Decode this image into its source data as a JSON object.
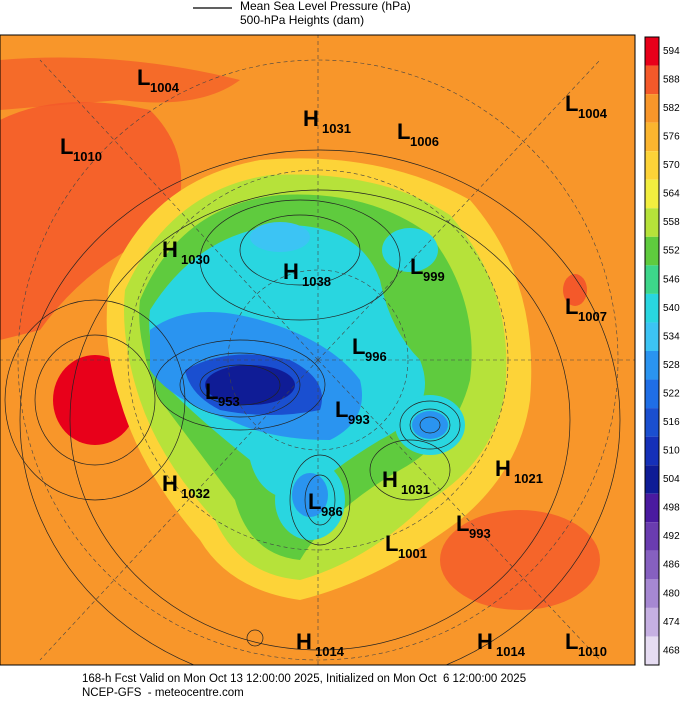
{
  "legend": {
    "line_label": "Mean Sea Level Pressure (hPa)",
    "fill_label": "500-hPa Heights (dam)"
  },
  "colorbar": {
    "levels": [
      {
        "value": 594,
        "color": "#e8001a"
      },
      {
        "value": 588,
        "color": "#f4592a"
      },
      {
        "value": 582,
        "color": "#f8962a"
      },
      {
        "value": 576,
        "color": "#fbb52f"
      },
      {
        "value": 570,
        "color": "#fdd338"
      },
      {
        "value": 564,
        "color": "#f2ee3f"
      },
      {
        "value": 558,
        "color": "#b6e23a"
      },
      {
        "value": 552,
        "color": "#5fcb3e"
      },
      {
        "value": 546,
        "color": "#3dd68a"
      },
      {
        "value": 540,
        "color": "#29d6e0"
      },
      {
        "value": 534,
        "color": "#3cc4f4"
      },
      {
        "value": 528,
        "color": "#2a94f0"
      },
      {
        "value": 522,
        "color": "#1f6ee6"
      },
      {
        "value": 516,
        "color": "#1a4fd0"
      },
      {
        "value": 510,
        "color": "#1530b8"
      },
      {
        "value": 504,
        "color": "#0f1c96"
      },
      {
        "value": 498,
        "color": "#4a1aa0"
      },
      {
        "value": 492,
        "color": "#6a3cb0"
      },
      {
        "value": 486,
        "color": "#8660c0"
      },
      {
        "value": 480,
        "color": "#a688d2"
      },
      {
        "value": 474,
        "color": "#c6b0e2"
      },
      {
        "value": 468,
        "color": "#e6dcf2"
      }
    ]
  },
  "centers": [
    {
      "kind": "L",
      "value": 1004
    },
    {
      "kind": "H",
      "value": 1031
    },
    {
      "kind": "L",
      "value": 1006
    },
    {
      "kind": "L",
      "value": 1004
    },
    {
      "kind": "L",
      "value": 1010
    },
    {
      "kind": "H",
      "value": 1030
    },
    {
      "kind": "H",
      "value": 1038
    },
    {
      "kind": "L",
      "value": 999
    },
    {
      "kind": "L",
      "value": 1007
    },
    {
      "kind": "L",
      "value": 996
    },
    {
      "kind": "L",
      "value": 953
    },
    {
      "kind": "L",
      "value": 993
    },
    {
      "kind": "H",
      "value": 1032
    },
    {
      "kind": "H",
      "value": 1031
    },
    {
      "kind": "H",
      "value": 1021
    },
    {
      "kind": "L",
      "value": 986
    },
    {
      "kind": "L",
      "value": 993
    },
    {
      "kind": "L",
      "value": 1001
    },
    {
      "kind": "H",
      "value": 1014
    },
    {
      "kind": "H",
      "value": 1014
    },
    {
      "kind": "L",
      "value": 1010
    }
  ],
  "footer": {
    "line1": "168-h Fcst Valid on Mon Oct 13 12:00:00 2025, Initialized on Mon Oct  6 12:00:00 2025",
    "line2": "NCEP-GFS  - meteocentre.com"
  }
}
